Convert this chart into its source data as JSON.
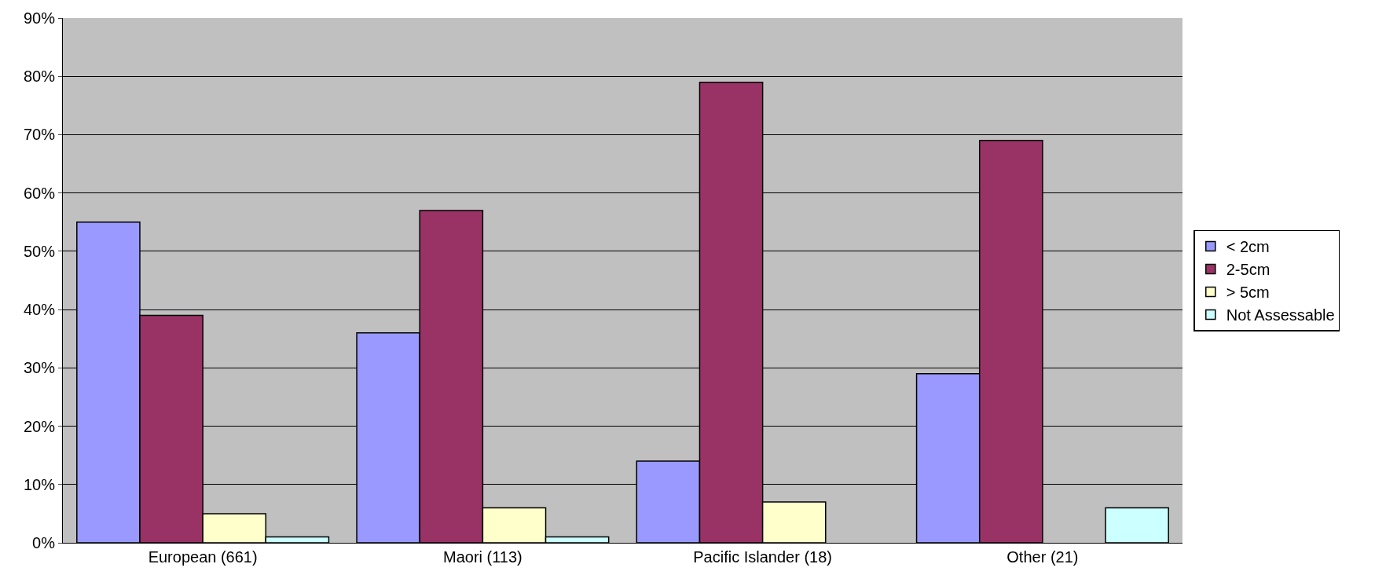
{
  "chart_data": {
    "type": "bar",
    "categories": [
      "European (661)",
      "Maori (113)",
      "Pacific Islander (18)",
      "Other (21)"
    ],
    "series": [
      {
        "name": "< 2cm",
        "color": "#9999ff",
        "values": [
          55,
          36,
          14,
          29
        ]
      },
      {
        "name": "2-5cm",
        "color": "#993366",
        "values": [
          39,
          57,
          79,
          69
        ]
      },
      {
        "name": "> 5cm",
        "color": "#ffffcc",
        "values": [
          5,
          6,
          7,
          null
        ]
      },
      {
        "name": "Not Assessable",
        "color": "#ccffff",
        "values": [
          1,
          1,
          null,
          6
        ]
      }
    ],
    "ylim": [
      0,
      90
    ],
    "yticks": [
      {
        "value": 0,
        "label": "0%"
      },
      {
        "value": 10,
        "label": "10%"
      },
      {
        "value": 20,
        "label": "20%"
      },
      {
        "value": 30,
        "label": "30%"
      },
      {
        "value": 40,
        "label": "40%"
      },
      {
        "value": 50,
        "label": "50%"
      },
      {
        "value": 60,
        "label": "60%"
      },
      {
        "value": 70,
        "label": "70%"
      },
      {
        "value": 80,
        "label": "80%"
      },
      {
        "value": 90,
        "label": "90%"
      }
    ],
    "grid": "y",
    "legend": "right"
  }
}
